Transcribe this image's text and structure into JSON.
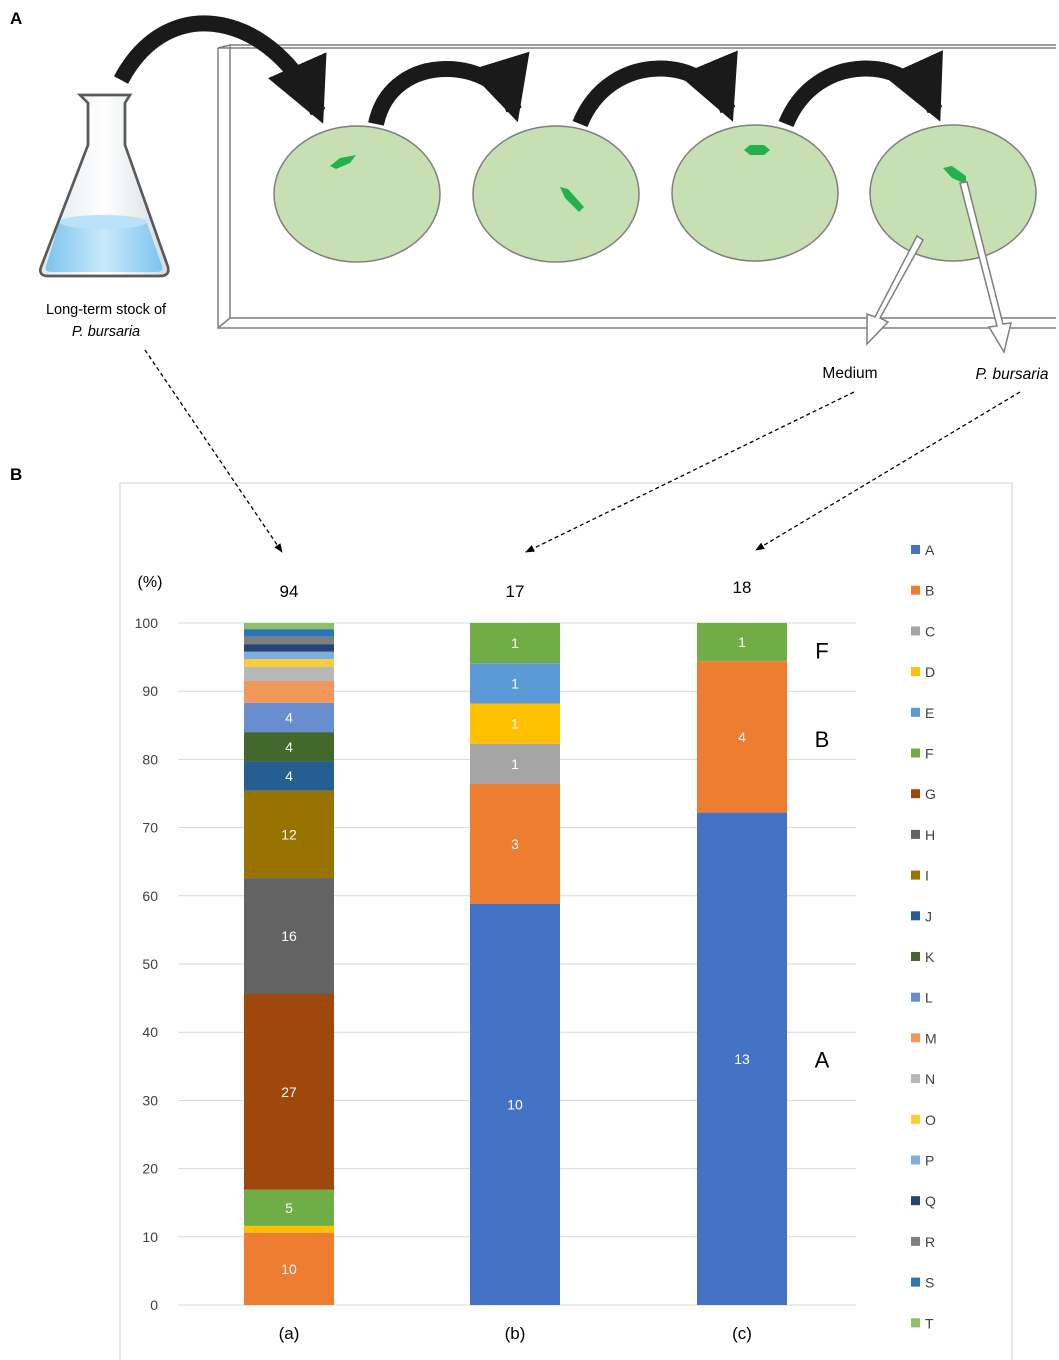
{
  "panel_a": {
    "label": "A",
    "flask_caption_line1": "Long-term stock of",
    "flask_caption_line2": "P. bursaria",
    "medium_label": "Medium",
    "organism_label": "P. bursaria",
    "colors": {
      "dish_fill": "#c6e0b4",
      "dish_stroke": "#7f7f7f",
      "cell": "#22b14c",
      "arrow": "#1a1a1a",
      "flask_liquid": "#9dd3f2"
    }
  },
  "panel_b": {
    "label": "B",
    "y_unit": "(%)"
  },
  "chart_data": {
    "type": "bar",
    "stacked": true,
    "ylim": [
      0,
      100
    ],
    "yticks": [
      0,
      10,
      20,
      30,
      40,
      50,
      60,
      70,
      80,
      90,
      100
    ],
    "grid": true,
    "legend_position": "right",
    "categories": [
      "(a)",
      "(b)",
      "(c)"
    ],
    "totals": [
      "94",
      "17",
      "18"
    ],
    "legend": [
      {
        "key": "A",
        "color": "#4472c4"
      },
      {
        "key": "B",
        "color": "#ed7d31"
      },
      {
        "key": "C",
        "color": "#a5a5a5"
      },
      {
        "key": "D",
        "color": "#ffc000"
      },
      {
        "key": "E",
        "color": "#5b9bd5"
      },
      {
        "key": "F",
        "color": "#70ad47"
      },
      {
        "key": "G",
        "color": "#9e480e"
      },
      {
        "key": "H",
        "color": "#636363"
      },
      {
        "key": "I",
        "color": "#997300"
      },
      {
        "key": "J",
        "color": "#255e91"
      },
      {
        "key": "K",
        "color": "#43682b"
      },
      {
        "key": "L",
        "color": "#698ed0"
      },
      {
        "key": "M",
        "color": "#f1975a"
      },
      {
        "key": "N",
        "color": "#b7b7b7"
      },
      {
        "key": "O",
        "color": "#ffcd33"
      },
      {
        "key": "P",
        "color": "#7cafdd"
      },
      {
        "key": "Q",
        "color": "#264478"
      },
      {
        "key": "R",
        "color": "#7f7f7f"
      },
      {
        "key": "S",
        "color": "#2e75b6"
      },
      {
        "key": "T",
        "color": "#8cc168"
      }
    ],
    "stacks": [
      {
        "category": "(a)",
        "segments": [
          {
            "key": "B",
            "value": 10.6,
            "label": "10"
          },
          {
            "key": "D",
            "value": 1.0,
            "label": ""
          },
          {
            "key": "F",
            "value": 5.3,
            "label": "5"
          },
          {
            "key": "G",
            "value": 28.7,
            "label": "27"
          },
          {
            "key": "H",
            "value": 17.0,
            "label": "16"
          },
          {
            "key": "I",
            "value": 12.8,
            "label": "12"
          },
          {
            "key": "J",
            "value": 4.3,
            "label": "4"
          },
          {
            "key": "K",
            "value": 4.3,
            "label": "4"
          },
          {
            "key": "L",
            "value": 4.3,
            "label": "4"
          },
          {
            "key": "M",
            "value": 3.2,
            "label": ""
          },
          {
            "key": "N",
            "value": 2.1,
            "label": ""
          },
          {
            "key": "O",
            "value": 1.1,
            "label": ""
          },
          {
            "key": "P",
            "value": 1.1,
            "label": ""
          },
          {
            "key": "Q",
            "value": 1.1,
            "label": ""
          },
          {
            "key": "R",
            "value": 1.1,
            "label": ""
          },
          {
            "key": "S",
            "value": 1.1,
            "label": ""
          },
          {
            "key": "T",
            "value": 0.9,
            "label": ""
          }
        ]
      },
      {
        "category": "(b)",
        "segments": [
          {
            "key": "A",
            "value": 58.8,
            "label": "10"
          },
          {
            "key": "B",
            "value": 17.6,
            "label": "3"
          },
          {
            "key": "C",
            "value": 5.9,
            "label": "1"
          },
          {
            "key": "D",
            "value": 5.9,
            "label": "1"
          },
          {
            "key": "E",
            "value": 5.9,
            "label": "1"
          },
          {
            "key": "F",
            "value": 5.9,
            "label": "1"
          }
        ]
      },
      {
        "category": "(c)",
        "segments": [
          {
            "key": "A",
            "value": 72.2,
            "label": "13"
          },
          {
            "key": "B",
            "value": 22.2,
            "label": "4"
          },
          {
            "key": "F",
            "value": 5.6,
            "label": "1"
          }
        ]
      }
    ],
    "annotations": [
      {
        "text": "F",
        "category": "(c)",
        "at": 96
      },
      {
        "text": "B",
        "category": "(c)",
        "at": 83
      },
      {
        "text": "A",
        "category": "(c)",
        "at": 36
      }
    ]
  }
}
